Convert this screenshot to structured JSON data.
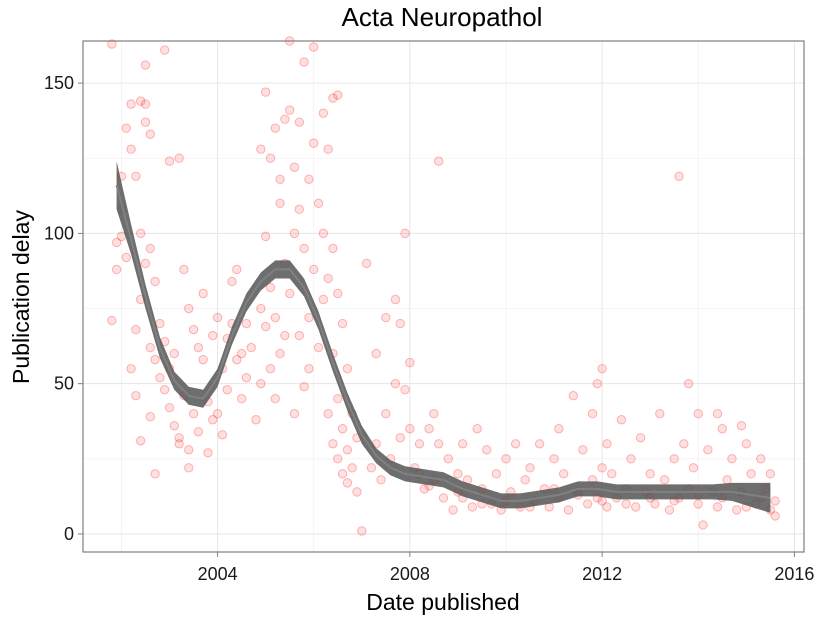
{
  "chart_data": {
    "type": "scatter",
    "title": "Acta Neuropathol",
    "xlabel": "Date published",
    "ylabel": "Publication delay",
    "xlim": [
      2001.2,
      2016.2
    ],
    "ylim": [
      -6,
      164
    ],
    "xticks": [
      2004,
      2008,
      2012,
      2016
    ],
    "yticks": [
      0,
      50,
      100,
      150
    ],
    "grid": true,
    "legend": "none",
    "points_color": "#ff0000",
    "smooth_band_color": "#555555",
    "smooth_line_color": "#808080",
    "points": [
      [
        2001.8,
        163
      ],
      [
        2001.8,
        71
      ],
      [
        2001.9,
        88
      ],
      [
        2001.9,
        97
      ],
      [
        2002.0,
        119
      ],
      [
        2002.0,
        108
      ],
      [
        2002.1,
        135
      ],
      [
        2002.1,
        92
      ],
      [
        2002.2,
        143
      ],
      [
        2002.2,
        128
      ],
      [
        2002.3,
        119
      ],
      [
        2002.3,
        68
      ],
      [
        2002.4,
        144
      ],
      [
        2002.4,
        100
      ],
      [
        2002.4,
        78
      ],
      [
        2002.5,
        156
      ],
      [
        2002.5,
        143
      ],
      [
        2002.5,
        137
      ],
      [
        2002.5,
        90
      ],
      [
        2002.6,
        133
      ],
      [
        2002.6,
        95
      ],
      [
        2002.6,
        62
      ],
      [
        2002.7,
        84
      ],
      [
        2002.7,
        58
      ],
      [
        2002.8,
        70
      ],
      [
        2002.8,
        52
      ],
      [
        2002.9,
        64
      ],
      [
        2002.9,
        48
      ],
      [
        2003.0,
        124
      ],
      [
        2003.0,
        42
      ],
      [
        2003.1,
        60
      ],
      [
        2003.1,
        36
      ],
      [
        2003.2,
        125
      ],
      [
        2003.2,
        32
      ],
      [
        2003.3,
        88
      ],
      [
        2003.3,
        46
      ],
      [
        2003.4,
        75
      ],
      [
        2003.4,
        28
      ],
      [
        2003.5,
        68
      ],
      [
        2003.5,
        40
      ],
      [
        2002.4,
        31
      ],
      [
        2002.9,
        161
      ],
      [
        2002.7,
        20
      ],
      [
        2002.2,
        55
      ],
      [
        2002.0,
        99
      ],
      [
        2002.3,
        46
      ],
      [
        2002.6,
        39
      ],
      [
        2003.0,
        55
      ],
      [
        2003.2,
        30
      ],
      [
        2003.4,
        22
      ],
      [
        2003.6,
        62
      ],
      [
        2003.6,
        34
      ],
      [
        2003.7,
        80
      ],
      [
        2003.7,
        58
      ],
      [
        2003.8,
        44
      ],
      [
        2003.8,
        27
      ],
      [
        2003.9,
        66
      ],
      [
        2003.9,
        38
      ],
      [
        2004.0,
        72
      ],
      [
        2004.0,
        40
      ],
      [
        2004.1,
        55
      ],
      [
        2004.1,
        33
      ],
      [
        2004.2,
        65
      ],
      [
        2004.2,
        48
      ],
      [
        2004.3,
        84
      ],
      [
        2004.3,
        70
      ],
      [
        2004.4,
        88
      ],
      [
        2004.4,
        58
      ],
      [
        2004.5,
        60
      ],
      [
        2004.5,
        45
      ],
      [
        2004.6,
        70
      ],
      [
        2004.6,
        52
      ],
      [
        2004.7,
        62
      ],
      [
        2004.8,
        38
      ],
      [
        2004.9,
        50
      ],
      [
        2004.9,
        128
      ],
      [
        2005.0,
        147
      ],
      [
        2005.0,
        99
      ],
      [
        2005.1,
        125
      ],
      [
        2005.1,
        82
      ],
      [
        2005.2,
        135
      ],
      [
        2005.2,
        72
      ],
      [
        2005.3,
        110
      ],
      [
        2005.3,
        60
      ],
      [
        2005.4,
        138
      ],
      [
        2005.4,
        90
      ],
      [
        2005.5,
        141
      ],
      [
        2005.5,
        80
      ],
      [
        2005.6,
        122
      ],
      [
        2005.6,
        100
      ],
      [
        2005.7,
        137
      ],
      [
        2005.7,
        108
      ],
      [
        2005.7,
        66
      ],
      [
        2005.8,
        157
      ],
      [
        2005.8,
        95
      ],
      [
        2005.9,
        118
      ],
      [
        2005.9,
        72
      ],
      [
        2006.0,
        162
      ],
      [
        2006.0,
        130
      ],
      [
        2006.0,
        88
      ],
      [
        2005.2,
        45
      ],
      [
        2005.5,
        164
      ],
      [
        2005.8,
        49
      ],
      [
        2004.9,
        75
      ],
      [
        2005.1,
        55
      ],
      [
        2005.4,
        66
      ],
      [
        2005.6,
        40
      ],
      [
        2005.9,
        55
      ],
      [
        2005.3,
        118
      ],
      [
        2005.0,
        69
      ],
      [
        2006.1,
        110
      ],
      [
        2006.1,
        62
      ],
      [
        2006.2,
        140
      ],
      [
        2006.2,
        100
      ],
      [
        2006.2,
        78
      ],
      [
        2006.3,
        128
      ],
      [
        2006.3,
        85
      ],
      [
        2006.4,
        145
      ],
      [
        2006.4,
        95
      ],
      [
        2006.4,
        60
      ],
      [
        2006.5,
        146
      ],
      [
        2006.5,
        80
      ],
      [
        2006.5,
        45
      ],
      [
        2006.6,
        70
      ],
      [
        2006.6,
        35
      ],
      [
        2006.7,
        55
      ],
      [
        2006.7,
        28
      ],
      [
        2006.8,
        40
      ],
      [
        2006.8,
        22
      ],
      [
        2006.9,
        32
      ],
      [
        2006.3,
        40
      ],
      [
        2006.4,
        30
      ],
      [
        2006.5,
        25
      ],
      [
        2006.6,
        20
      ],
      [
        2006.7,
        17
      ],
      [
        2006.9,
        14
      ],
      [
        2007.0,
        1
      ],
      [
        2007.1,
        90
      ],
      [
        2007.2,
        22
      ],
      [
        2007.3,
        60
      ],
      [
        2007.3,
        30
      ],
      [
        2007.4,
        18
      ],
      [
        2007.5,
        72
      ],
      [
        2007.5,
        40
      ],
      [
        2007.6,
        25
      ],
      [
        2007.7,
        78
      ],
      [
        2007.7,
        50
      ],
      [
        2007.8,
        70
      ],
      [
        2007.8,
        32
      ],
      [
        2007.9,
        100
      ],
      [
        2007.9,
        48
      ],
      [
        2008.0,
        57
      ],
      [
        2008.0,
        35
      ],
      [
        2008.1,
        22
      ],
      [
        2008.2,
        30
      ],
      [
        2008.3,
        15
      ],
      [
        2008.4,
        35
      ],
      [
        2008.5,
        40
      ],
      [
        2008.5,
        18
      ],
      [
        2008.6,
        124
      ],
      [
        2008.6,
        30
      ],
      [
        2008.7,
        12
      ],
      [
        2008.8,
        25
      ],
      [
        2008.9,
        8
      ],
      [
        2009.0,
        20
      ],
      [
        2009.1,
        30
      ],
      [
        2009.1,
        12
      ],
      [
        2009.2,
        18
      ],
      [
        2009.3,
        9
      ],
      [
        2009.4,
        35
      ],
      [
        2009.5,
        15
      ],
      [
        2009.6,
        28
      ],
      [
        2009.7,
        10
      ],
      [
        2009.8,
        20
      ],
      [
        2009.9,
        8
      ],
      [
        2010.0,
        25
      ],
      [
        2010.1,
        14
      ],
      [
        2010.2,
        30
      ],
      [
        2010.3,
        9
      ],
      [
        2010.4,
        18
      ],
      [
        2010.5,
        22
      ],
      [
        2010.6,
        11
      ],
      [
        2010.7,
        30
      ],
      [
        2010.8,
        15
      ],
      [
        2010.9,
        9
      ],
      [
        2011.0,
        25
      ],
      [
        2011.1,
        35
      ],
      [
        2011.1,
        12
      ],
      [
        2011.2,
        20
      ],
      [
        2011.3,
        8
      ],
      [
        2011.4,
        46
      ],
      [
        2011.5,
        14
      ],
      [
        2011.6,
        28
      ],
      [
        2011.7,
        10
      ],
      [
        2011.8,
        40
      ],
      [
        2011.8,
        18
      ],
      [
        2011.9,
        50
      ],
      [
        2011.9,
        12
      ],
      [
        2012.0,
        55
      ],
      [
        2012.0,
        22
      ],
      [
        2012.1,
        30
      ],
      [
        2012.1,
        9
      ],
      [
        2012.2,
        20
      ],
      [
        2012.3,
        12
      ],
      [
        2012.4,
        38
      ],
      [
        2012.5,
        15
      ],
      [
        2012.6,
        25
      ],
      [
        2012.7,
        9
      ],
      [
        2012.8,
        32
      ],
      [
        2012.9,
        14
      ],
      [
        2013.0,
        20
      ],
      [
        2013.1,
        10
      ],
      [
        2013.2,
        40
      ],
      [
        2013.3,
        18
      ],
      [
        2013.4,
        8
      ],
      [
        2013.5,
        25
      ],
      [
        2013.6,
        119
      ],
      [
        2013.6,
        12
      ],
      [
        2013.7,
        30
      ],
      [
        2013.8,
        50
      ],
      [
        2013.8,
        15
      ],
      [
        2013.9,
        22
      ],
      [
        2014.0,
        40
      ],
      [
        2014.0,
        10
      ],
      [
        2014.1,
        3
      ],
      [
        2014.2,
        28
      ],
      [
        2014.3,
        14
      ],
      [
        2014.4,
        40
      ],
      [
        2014.4,
        9
      ],
      [
        2014.5,
        35
      ],
      [
        2014.6,
        18
      ],
      [
        2014.7,
        25
      ],
      [
        2014.8,
        8
      ],
      [
        2014.9,
        36
      ],
      [
        2014.9,
        14
      ],
      [
        2015.0,
        30
      ],
      [
        2015.1,
        20
      ],
      [
        2015.2,
        10
      ],
      [
        2015.3,
        25
      ],
      [
        2015.4,
        15
      ],
      [
        2015.5,
        8
      ],
      [
        2015.5,
        20
      ],
      [
        2015.6,
        11
      ],
      [
        2015.6,
        6
      ],
      [
        2009.0,
        14
      ],
      [
        2010.0,
        11
      ],
      [
        2011.0,
        15
      ],
      [
        2012.0,
        11
      ],
      [
        2013.0,
        12
      ],
      [
        2014.0,
        13
      ],
      [
        2008.2,
        20
      ],
      [
        2008.4,
        16
      ],
      [
        2009.5,
        10
      ],
      [
        2010.5,
        9
      ],
      [
        2011.5,
        13
      ],
      [
        2012.5,
        10
      ],
      [
        2013.5,
        11
      ],
      [
        2014.5,
        12
      ],
      [
        2015.0,
        9
      ],
      [
        2015.3,
        12
      ]
    ],
    "smooth": {
      "x": [
        2001.9,
        2002.2,
        2002.5,
        2002.8,
        2003.1,
        2003.4,
        2003.7,
        2004.0,
        2004.3,
        2004.6,
        2004.9,
        2005.2,
        2005.5,
        2005.8,
        2006.1,
        2006.4,
        2006.7,
        2007.0,
        2007.3,
        2007.6,
        2007.9,
        2008.3,
        2008.7,
        2009.1,
        2009.5,
        2009.9,
        2010.3,
        2010.7,
        2011.1,
        2011.5,
        2011.9,
        2012.3,
        2012.7,
        2013.1,
        2013.5,
        2013.9,
        2014.3,
        2014.7,
        2015.1,
        2015.5
      ],
      "y": [
        116,
        98,
        79,
        62,
        51,
        46,
        45,
        52,
        66,
        77,
        84,
        88,
        88,
        82,
        71,
        57,
        44,
        33,
        26,
        22,
        20,
        19,
        18,
        15,
        13,
        11,
        11,
        12,
        13,
        15,
        15,
        14,
        14,
        14,
        14,
        14,
        14,
        14,
        13,
        12
      ],
      "se": [
        8,
        5,
        4,
        3.5,
        3,
        3,
        3,
        3,
        3,
        3,
        3,
        3,
        3,
        3,
        3,
        3,
        3,
        3,
        2.5,
        2.5,
        2.5,
        2.5,
        2.5,
        2.5,
        2.5,
        2.5,
        2.5,
        2.5,
        2.5,
        2.5,
        2.5,
        2.5,
        2.5,
        2.5,
        2.5,
        2.5,
        2.5,
        3,
        4,
        5
      ]
    }
  }
}
